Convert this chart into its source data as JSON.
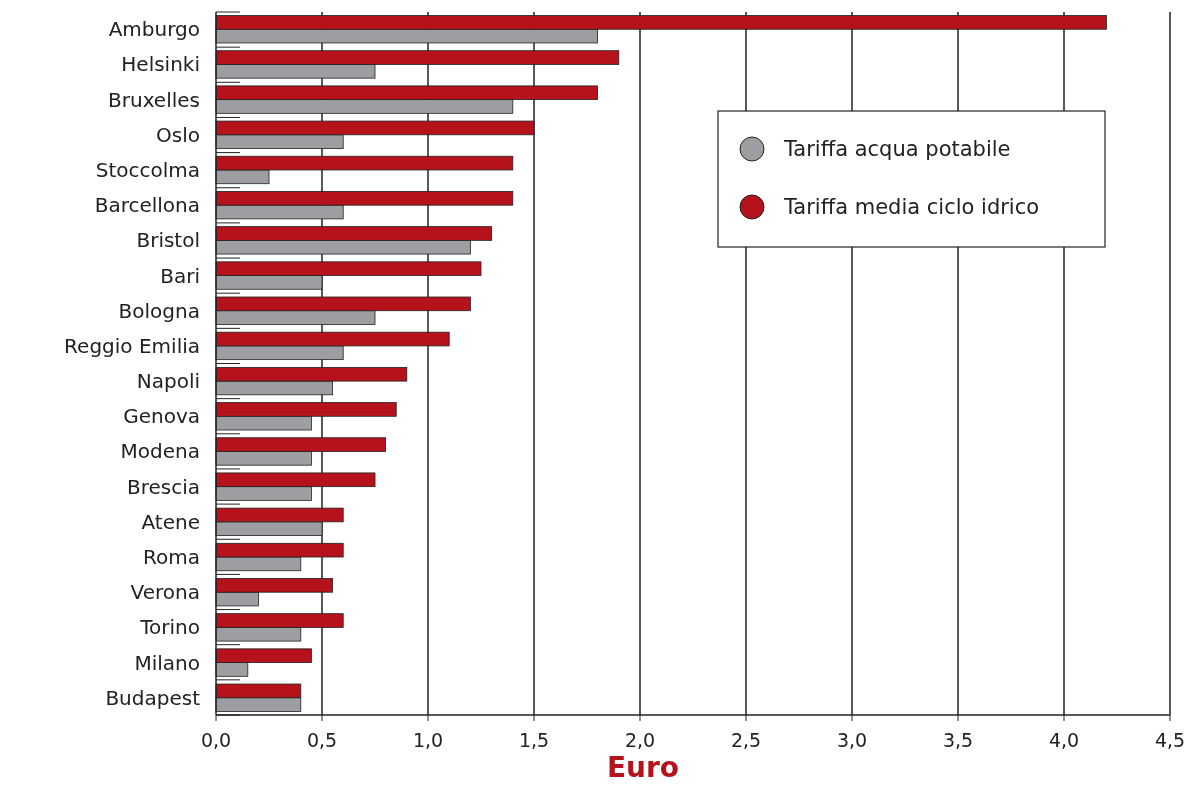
{
  "chart_data": {
    "type": "bar",
    "orientation": "horizontal",
    "xlabel": "Euro",
    "categories": [
      "Amburgo",
      "Helsinki",
      "Bruxelles",
      "Oslo",
      "Stoccolma",
      "Barcellona",
      "Bristol",
      "Bari",
      "Bologna",
      "Reggio Emilia",
      "Napoli",
      "Genova",
      "Modena",
      "Brescia",
      "Atene",
      "Roma",
      "Verona",
      "Torino",
      "Milano",
      "Budapest"
    ],
    "series": [
      {
        "name": "Tariffa acqua potabile",
        "color": "#9d9ea2",
        "values": [
          1.8,
          0.75,
          1.4,
          0.6,
          0.25,
          0.6,
          1.2,
          0.5,
          0.75,
          0.6,
          0.55,
          0.45,
          0.45,
          0.45,
          0.5,
          0.4,
          0.2,
          0.4,
          0.15,
          0.4
        ]
      },
      {
        "name": "Tariffa media ciclo idrico",
        "color": "#b5121b",
        "values": [
          4.2,
          1.9,
          1.8,
          1.5,
          1.4,
          1.4,
          1.3,
          1.25,
          1.2,
          1.1,
          0.9,
          0.85,
          0.8,
          0.75,
          0.6,
          0.6,
          0.55,
          0.6,
          0.45,
          0.4
        ]
      }
    ],
    "xlim": [
      0,
      4.5
    ],
    "xticks": [
      {
        "value": 0,
        "label": "0,0"
      },
      {
        "value": 0.5,
        "label": "0,5"
      },
      {
        "value": 1,
        "label": "1,0"
      },
      {
        "value": 1.5,
        "label": "1,5"
      },
      {
        "value": 2,
        "label": "2,0"
      },
      {
        "value": 2.5,
        "label": "2,5"
      },
      {
        "value": 3,
        "label": "3,0"
      },
      {
        "value": 3.5,
        "label": "3,5"
      },
      {
        "value": 4,
        "label": "4,0"
      },
      {
        "value": 4.5,
        "label": "4,5"
      }
    ],
    "grid": "x",
    "legend": "top right"
  }
}
